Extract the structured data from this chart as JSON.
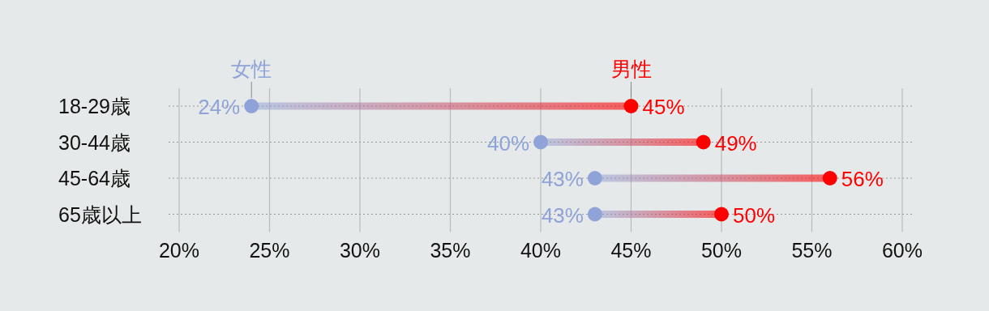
{
  "chart_data": {
    "type": "scatter",
    "orientation": "horizontal",
    "categories": [
      "18-29歳",
      "30-44歳",
      "45-64歳",
      "65歳以上"
    ],
    "series": [
      {
        "name": "女性",
        "color": "#8fa3d9",
        "values": [
          24,
          40,
          43,
          43
        ],
        "value_labels": [
          "24%",
          "40%",
          "43%",
          "43%"
        ]
      },
      {
        "name": "男性",
        "color": "#ff0000",
        "values": [
          45,
          49,
          56,
          50
        ],
        "value_labels": [
          "45%",
          "49%",
          "56%",
          "50%"
        ]
      }
    ],
    "xlim": [
      20,
      60
    ],
    "xticks": [
      {
        "value": 20,
        "label": "20%"
      },
      {
        "value": 25,
        "label": "25%"
      },
      {
        "value": 30,
        "label": "30%"
      },
      {
        "value": 35,
        "label": "35%"
      },
      {
        "value": 40,
        "label": "40%"
      },
      {
        "value": 45,
        "label": "45%"
      },
      {
        "value": 50,
        "label": "50%"
      },
      {
        "value": 55,
        "label": "55%"
      },
      {
        "value": 60,
        "label": "60%"
      }
    ],
    "grid": true,
    "marker": "circle"
  }
}
